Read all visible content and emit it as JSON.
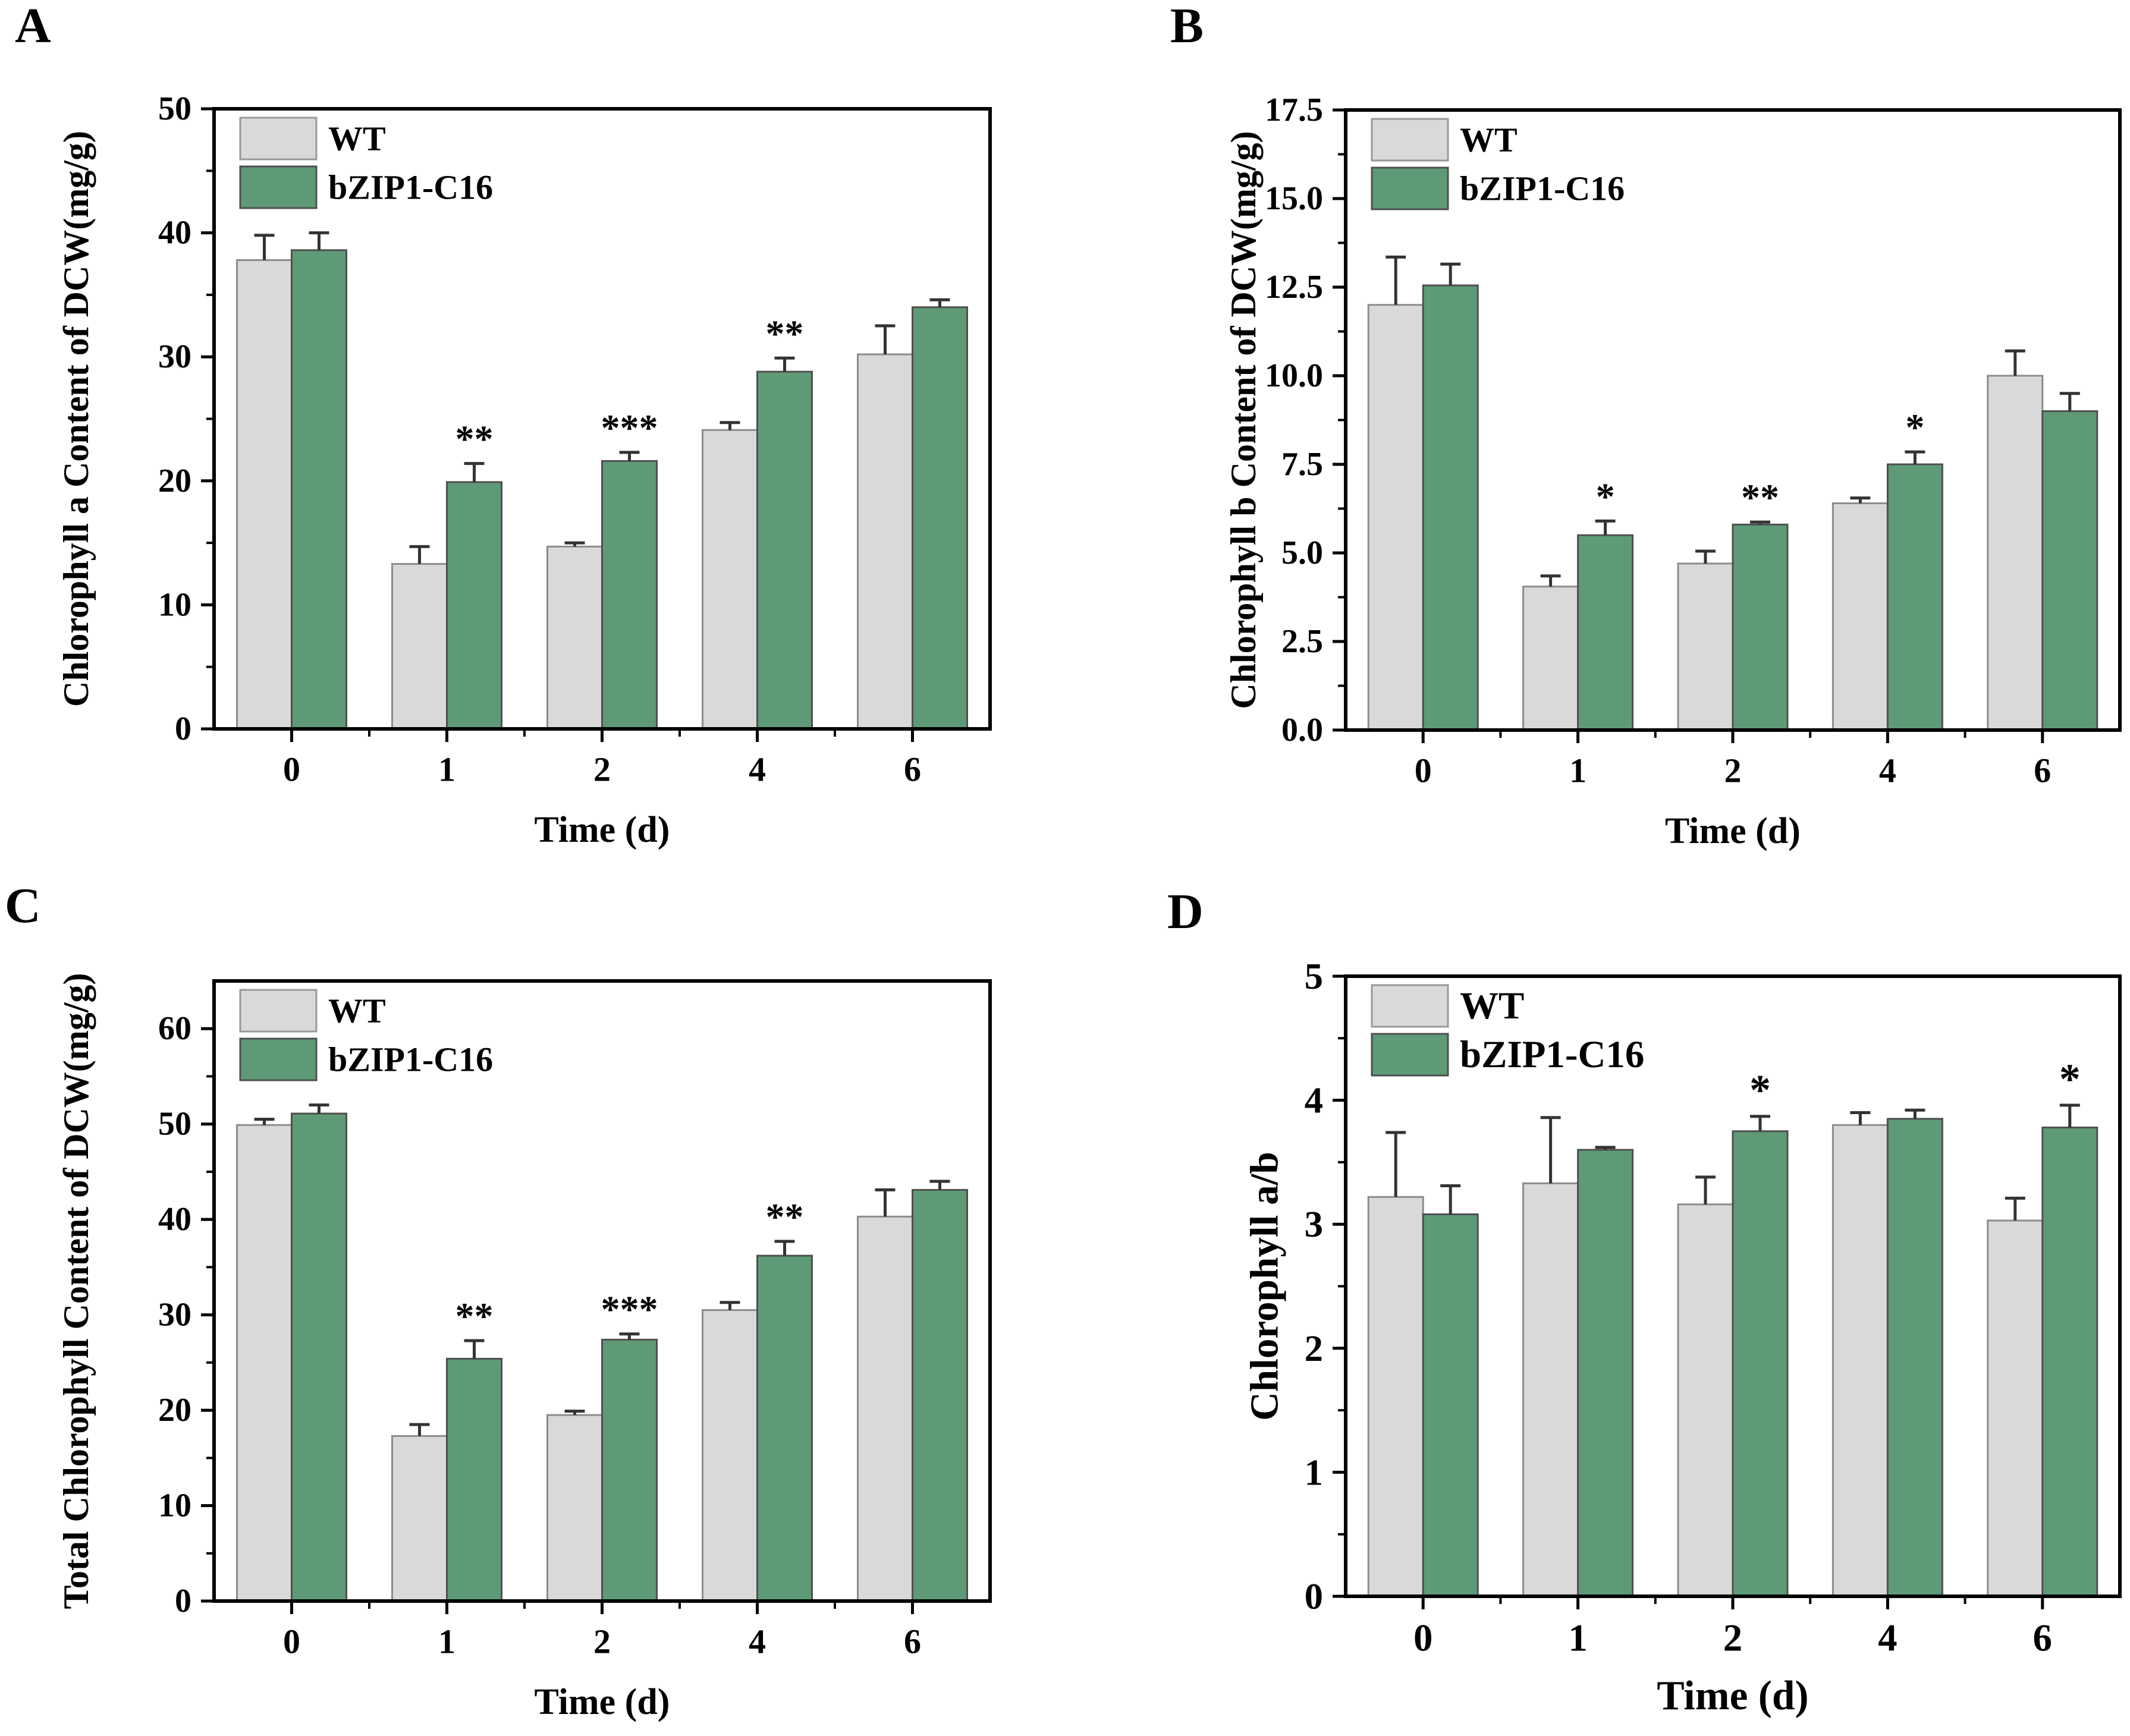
{
  "figure": {
    "background": "#ffffff",
    "axis_color": "#000000",
    "error_bar_color": "#333333"
  },
  "chart_data": [
    {
      "panel": "A",
      "type": "bar",
      "title": "",
      "xlabel": "Time (d)",
      "ylabel": "Chlorophyll a Content of DCW(mg/g)",
      "categories": [
        "0",
        "1",
        "2",
        "4",
        "6"
      ],
      "series": [
        {
          "name": "WT",
          "color": "#d9d9d9",
          "border": "#8c8c8c",
          "values": [
            37.8,
            13.3,
            14.7,
            24.1,
            30.2
          ],
          "errors": [
            2.0,
            1.4,
            0.3,
            0.6,
            2.3
          ]
        },
        {
          "name": "bZIP1-C16",
          "color": "#5f9a77",
          "border": "#4f4f4f",
          "values": [
            38.6,
            19.9,
            21.6,
            28.8,
            34.0
          ],
          "errors": [
            1.4,
            1.5,
            0.7,
            1.1,
            0.6
          ]
        }
      ],
      "significance": [
        "",
        "**",
        "***",
        "**",
        ""
      ],
      "ylim": [
        0,
        50
      ],
      "yticks": [
        0,
        10,
        20,
        30,
        40,
        50
      ],
      "ytick_labels": [
        "0",
        "10",
        "20",
        "30",
        "40",
        "50"
      ],
      "minor_y_step": 5,
      "legend_position": "top-left",
      "grid": false
    },
    {
      "panel": "B",
      "type": "bar",
      "title": "",
      "xlabel": "Time (d)",
      "ylabel": "Chlorophyll b Content of DCW(mg/g)",
      "categories": [
        "0",
        "1",
        "2",
        "4",
        "6"
      ],
      "series": [
        {
          "name": "WT",
          "color": "#d9d9d9",
          "border": "#8c8c8c",
          "values": [
            12.0,
            4.05,
            4.7,
            6.4,
            10.0
          ],
          "errors": [
            1.35,
            0.3,
            0.35,
            0.15,
            0.7
          ]
        },
        {
          "name": "bZIP1-C16",
          "color": "#5f9a77",
          "border": "#4f4f4f",
          "values": [
            12.55,
            5.5,
            5.8,
            7.5,
            9.0
          ],
          "errors": [
            0.6,
            0.4,
            0.07,
            0.35,
            0.5
          ]
        }
      ],
      "significance": [
        "",
        "*",
        "**",
        "*",
        ""
      ],
      "ylim": [
        0,
        17.5
      ],
      "yticks": [
        0,
        2.5,
        5,
        7.5,
        10,
        12.5,
        15,
        17.5
      ],
      "ytick_labels": [
        "0.0",
        "2.5",
        "5.0",
        "7.5",
        "10.0",
        "12.5",
        "15.0",
        "17.5"
      ],
      "minor_y_step": 1.25,
      "legend_position": "top-left",
      "grid": false
    },
    {
      "panel": "C",
      "type": "bar",
      "title": "",
      "xlabel": "Time (d)",
      "ylabel": "Total Chlorophyll Content of DCW(mg/g)",
      "categories": [
        "0",
        "1",
        "2",
        "4",
        "6"
      ],
      "series": [
        {
          "name": "WT",
          "color": "#d9d9d9",
          "border": "#8c8c8c",
          "values": [
            49.9,
            17.3,
            19.5,
            30.5,
            40.3
          ],
          "errors": [
            0.6,
            1.2,
            0.4,
            0.8,
            2.8
          ]
        },
        {
          "name": "bZIP1-C16",
          "color": "#5f9a77",
          "border": "#4f4f4f",
          "values": [
            51.1,
            25.4,
            27.4,
            36.2,
            43.1
          ],
          "errors": [
            0.9,
            1.9,
            0.6,
            1.5,
            0.9
          ]
        }
      ],
      "significance": [
        "",
        "**",
        "***",
        "**",
        ""
      ],
      "ylim": [
        0,
        65
      ],
      "yticks": [
        0,
        10,
        20,
        30,
        40,
        50,
        60
      ],
      "ytick_labels": [
        "0",
        "10",
        "20",
        "30",
        "40",
        "50",
        "60"
      ],
      "minor_y_step": 5,
      "legend_position": "top-left",
      "grid": false
    },
    {
      "panel": "D",
      "type": "bar",
      "title": "",
      "xlabel": "Time (d)",
      "ylabel": "Chlorophyll a/b",
      "categories": [
        "0",
        "1",
        "2",
        "4",
        "6"
      ],
      "series": [
        {
          "name": "WT",
          "color": "#d9d9d9",
          "border": "#8c8c8c",
          "values": [
            3.22,
            3.33,
            3.16,
            3.8,
            3.03
          ],
          "errors": [
            0.52,
            0.53,
            0.22,
            0.1,
            0.18
          ]
        },
        {
          "name": "bZIP1-C16",
          "color": "#5f9a77",
          "border": "#4f4f4f",
          "values": [
            3.08,
            3.6,
            3.75,
            3.85,
            3.78
          ],
          "errors": [
            0.23,
            0.02,
            0.12,
            0.07,
            0.18
          ]
        }
      ],
      "significance": [
        "",
        "",
        "*",
        "",
        "*"
      ],
      "ylim": [
        0,
        5
      ],
      "yticks": [
        0,
        1,
        2,
        3,
        4,
        5
      ],
      "ytick_labels": [
        "0",
        "1",
        "2",
        "3",
        "4",
        "5"
      ],
      "minor_y_step": 0.5,
      "legend_position": "top-left",
      "grid": false
    }
  ]
}
